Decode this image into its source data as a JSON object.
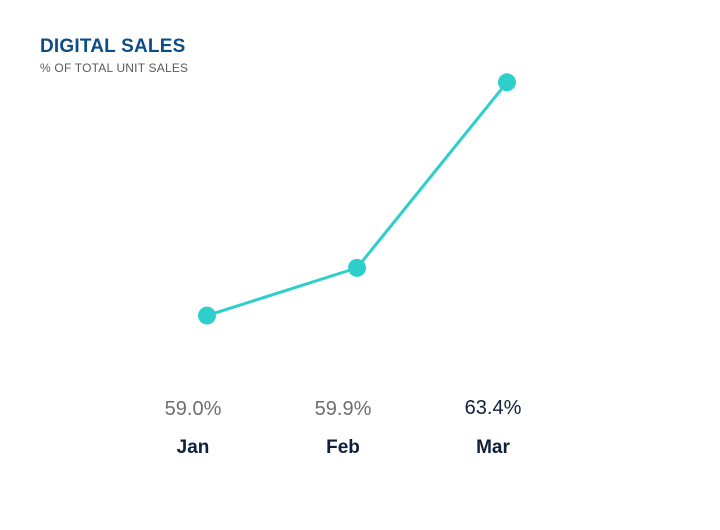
{
  "chart_data": {
    "type": "line",
    "title": "DIGITAL SALES",
    "subtitle": "% OF TOTAL UNIT SALES",
    "categories": [
      "Jan",
      "Feb",
      "Mar"
    ],
    "values": [
      59.0,
      59.9,
      63.4
    ],
    "value_labels": [
      "59.0%",
      "59.9%",
      "63.4%"
    ],
    "series": [
      {
        "values": [
          59.0,
          59.9,
          63.4
        ]
      }
    ],
    "ylim": [
      58.2,
      63.5
    ],
    "grid": false,
    "legend": "none",
    "highlight_index": 2
  },
  "colors": {
    "title": "#0c4d86",
    "subtitle": "#5a5a5a",
    "line": "#2ecfcb",
    "value_label": "#6e6e6e",
    "value_label_highlight": "#0f1f3d",
    "category_label": "#0f1f3d"
  }
}
